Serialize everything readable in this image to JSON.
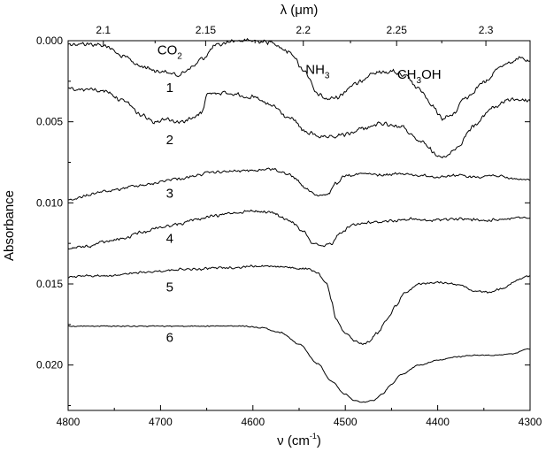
{
  "chart_data": {
    "type": "line",
    "xlabel_base": "ν (cm",
    "xlabel_sup": "-1",
    "xlabel_end": ")",
    "ylabel": "Absorbance",
    "top_xlabel": "λ (μm)",
    "xlim": [
      4800,
      4300
    ],
    "ylim": [
      0.0,
      0.0228
    ],
    "y_inverted": true,
    "x_ticks": [
      4800,
      4700,
      4600,
      4500,
      4400,
      4300
    ],
    "x_tick_labels": [
      "4800",
      "4700",
      "4600",
      "4500",
      "4400",
      "4300"
    ],
    "y_ticks": [
      0.0,
      0.005,
      0.01,
      0.015,
      0.02
    ],
    "y_tick_labels": [
      "0.000",
      "0.005",
      "0.010",
      "0.015",
      "0.020"
    ],
    "top_ticks_um": [
      2.1,
      2.15,
      2.2,
      2.25,
      2.3
    ],
    "top_tick_labels": [
      "2.1",
      "2.15",
      "2.2",
      "2.25",
      "2.3"
    ],
    "annotations": [
      {
        "base": "CO",
        "sub": "2",
        "rest": "",
        "x": 4690,
        "y": 0.0003
      },
      {
        "base": "NH",
        "sub": "3",
        "rest": "",
        "x": 4530,
        "y": 0.0015
      },
      {
        "base": "CH",
        "sub": "3",
        "rest": "OH",
        "x": 4420,
        "y": 0.0018
      }
    ],
    "series": [
      {
        "label": "1",
        "label_pos": [
          4690,
          0.0029
        ],
        "noise": 0.00015,
        "points": [
          [
            4800,
            0.0002
          ],
          [
            4780,
            0.0002
          ],
          [
            4760,
            0.0003
          ],
          [
            4740,
            0.001
          ],
          [
            4720,
            0.0016
          ],
          [
            4700,
            0.0019
          ],
          [
            4680,
            0.0021
          ],
          [
            4665,
            0.0016
          ],
          [
            4655,
            0.0011
          ],
          [
            4640,
            0.0003
          ],
          [
            4620,
            0.0
          ],
          [
            4600,
            0.0
          ],
          [
            4580,
            0.0001
          ],
          [
            4560,
            0.0007
          ],
          [
            4545,
            0.0018
          ],
          [
            4530,
            0.0033
          ],
          [
            4520,
            0.0036
          ],
          [
            4510,
            0.0035
          ],
          [
            4490,
            0.0027
          ],
          [
            4470,
            0.002
          ],
          [
            4450,
            0.0019
          ],
          [
            4435,
            0.0022
          ],
          [
            4420,
            0.003
          ],
          [
            4405,
            0.0041
          ],
          [
            4395,
            0.0048
          ],
          [
            4385,
            0.0046
          ],
          [
            4370,
            0.0035
          ],
          [
            4350,
            0.0026
          ],
          [
            4330,
            0.0015
          ],
          [
            4310,
            0.0011
          ],
          [
            4300,
            0.0013
          ]
        ]
      },
      {
        "label": "2",
        "label_pos": [
          4690,
          0.0061
        ],
        "noise": 0.00015,
        "points": [
          [
            4800,
            0.003
          ],
          [
            4780,
            0.003
          ],
          [
            4760,
            0.0031
          ],
          [
            4740,
            0.0037
          ],
          [
            4720,
            0.0046
          ],
          [
            4705,
            0.005
          ],
          [
            4695,
            0.0048
          ],
          [
            4680,
            0.005
          ],
          [
            4665,
            0.0048
          ],
          [
            4655,
            0.0044
          ],
          [
            4650,
            0.0033
          ],
          [
            4640,
            0.0032
          ],
          [
            4620,
            0.0033
          ],
          [
            4600,
            0.0035
          ],
          [
            4580,
            0.004
          ],
          [
            4560,
            0.0048
          ],
          [
            4540,
            0.0057
          ],
          [
            4520,
            0.006
          ],
          [
            4500,
            0.0058
          ],
          [
            4480,
            0.0054
          ],
          [
            4460,
            0.0051
          ],
          [
            4440,
            0.0053
          ],
          [
            4420,
            0.0062
          ],
          [
            4400,
            0.007
          ],
          [
            4392,
            0.0072
          ],
          [
            4380,
            0.0066
          ],
          [
            4360,
            0.0052
          ],
          [
            4340,
            0.0041
          ],
          [
            4320,
            0.0036
          ],
          [
            4300,
            0.0037
          ]
        ]
      },
      {
        "label": "3",
        "label_pos": [
          4690,
          0.0094
        ],
        "noise": 0.0001,
        "points": [
          [
            4800,
            0.0098
          ],
          [
            4760,
            0.0093
          ],
          [
            4720,
            0.0089
          ],
          [
            4680,
            0.0085
          ],
          [
            4640,
            0.0081
          ],
          [
            4600,
            0.008
          ],
          [
            4580,
            0.0079
          ],
          [
            4560,
            0.0083
          ],
          [
            4540,
            0.0092
          ],
          [
            4530,
            0.0096
          ],
          [
            4520,
            0.0095
          ],
          [
            4510,
            0.0088
          ],
          [
            4500,
            0.0083
          ],
          [
            4480,
            0.0082
          ],
          [
            4460,
            0.0083
          ],
          [
            4440,
            0.0082
          ],
          [
            4420,
            0.0083
          ],
          [
            4400,
            0.0084
          ],
          [
            4380,
            0.0083
          ],
          [
            4360,
            0.0084
          ],
          [
            4340,
            0.0083
          ],
          [
            4320,
            0.0085
          ],
          [
            4300,
            0.0086
          ]
        ]
      },
      {
        "label": "4",
        "label_pos": [
          4690,
          0.0122
        ],
        "noise": 0.0001,
        "points": [
          [
            4800,
            0.0128
          ],
          [
            4780,
            0.0127
          ],
          [
            4760,
            0.0124
          ],
          [
            4740,
            0.0122
          ],
          [
            4720,
            0.0118
          ],
          [
            4700,
            0.0115
          ],
          [
            4680,
            0.0113
          ],
          [
            4660,
            0.011
          ],
          [
            4640,
            0.0108
          ],
          [
            4620,
            0.0106
          ],
          [
            4600,
            0.0105
          ],
          [
            4580,
            0.0106
          ],
          [
            4560,
            0.0111
          ],
          [
            4545,
            0.0118
          ],
          [
            4535,
            0.0125
          ],
          [
            4525,
            0.0127
          ],
          [
            4515,
            0.0125
          ],
          [
            4505,
            0.0118
          ],
          [
            4490,
            0.0113
          ],
          [
            4470,
            0.0112
          ],
          [
            4450,
            0.0111
          ],
          [
            4430,
            0.011
          ],
          [
            4410,
            0.0111
          ],
          [
            4390,
            0.011
          ],
          [
            4370,
            0.011
          ],
          [
            4350,
            0.0111
          ],
          [
            4330,
            0.011
          ],
          [
            4310,
            0.0109
          ],
          [
            4300,
            0.011
          ]
        ]
      },
      {
        "label": "5",
        "label_pos": [
          4690,
          0.0152
        ],
        "noise": 8e-05,
        "points": [
          [
            4800,
            0.0146
          ],
          [
            4780,
            0.0145
          ],
          [
            4760,
            0.0145
          ],
          [
            4740,
            0.0144
          ],
          [
            4720,
            0.0143
          ],
          [
            4700,
            0.0142
          ],
          [
            4680,
            0.0141
          ],
          [
            4660,
            0.0141
          ],
          [
            4640,
            0.014
          ],
          [
            4620,
            0.014
          ],
          [
            4600,
            0.0139
          ],
          [
            4580,
            0.0139
          ],
          [
            4560,
            0.014
          ],
          [
            4540,
            0.0141
          ],
          [
            4530,
            0.0143
          ],
          [
            4520,
            0.015
          ],
          [
            4515,
            0.016
          ],
          [
            4510,
            0.0172
          ],
          [
            4500,
            0.018
          ],
          [
            4490,
            0.0185
          ],
          [
            4482,
            0.0187
          ],
          [
            4475,
            0.0186
          ],
          [
            4465,
            0.018
          ],
          [
            4455,
            0.0172
          ],
          [
            4445,
            0.0163
          ],
          [
            4435,
            0.0155
          ],
          [
            4420,
            0.015
          ],
          [
            4400,
            0.0149
          ],
          [
            4380,
            0.015
          ],
          [
            4360,
            0.0154
          ],
          [
            4345,
            0.0155
          ],
          [
            4330,
            0.0153
          ],
          [
            4315,
            0.0148
          ],
          [
            4300,
            0.0145
          ]
        ]
      },
      {
        "label": "6",
        "label_pos": [
          4690,
          0.0183
        ],
        "noise": 4e-05,
        "points": [
          [
            4800,
            0.0176
          ],
          [
            4760,
            0.0176
          ],
          [
            4720,
            0.0176
          ],
          [
            4680,
            0.0176
          ],
          [
            4640,
            0.0176
          ],
          [
            4610,
            0.0176
          ],
          [
            4590,
            0.0177
          ],
          [
            4570,
            0.018
          ],
          [
            4550,
            0.0187
          ],
          [
            4530,
            0.0199
          ],
          [
            4515,
            0.021
          ],
          [
            4500,
            0.0218
          ],
          [
            4490,
            0.0222
          ],
          [
            4480,
            0.0223
          ],
          [
            4470,
            0.0222
          ],
          [
            4460,
            0.0218
          ],
          [
            4450,
            0.0212
          ],
          [
            4440,
            0.0206
          ],
          [
            4420,
            0.02
          ],
          [
            4400,
            0.0197
          ],
          [
            4380,
            0.0195
          ],
          [
            4360,
            0.0194
          ],
          [
            4340,
            0.0194
          ],
          [
            4320,
            0.0193
          ],
          [
            4300,
            0.019
          ]
        ]
      }
    ]
  }
}
